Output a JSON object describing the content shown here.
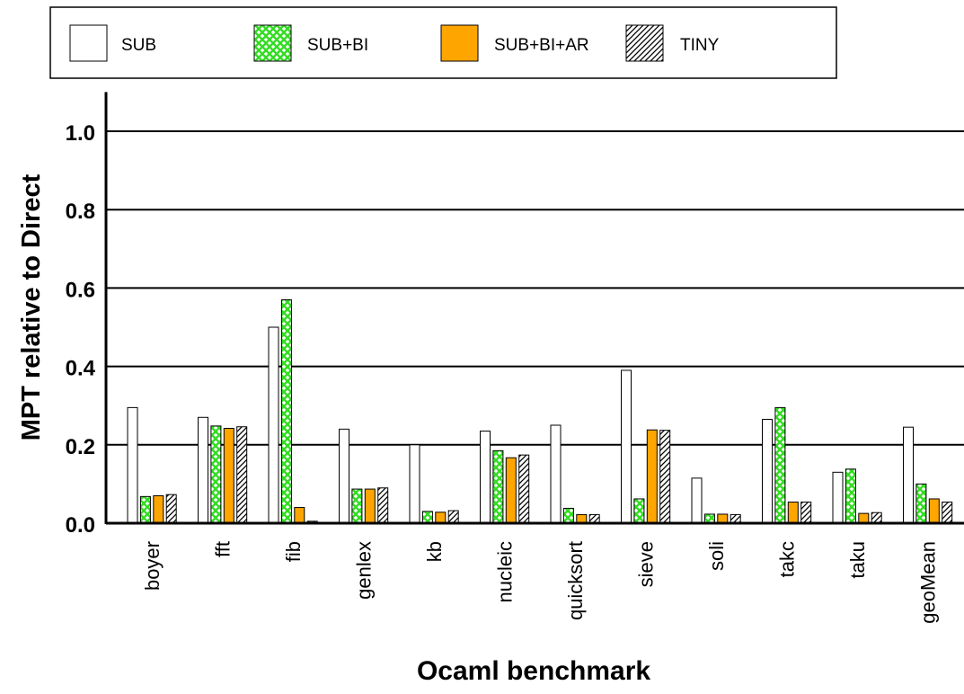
{
  "chart_data": {
    "type": "bar",
    "xlabel": "Ocaml benchmark",
    "ylabel": "MPT relative to Direct",
    "ylim": [
      0,
      1.1
    ],
    "yticks": [
      "0.0",
      "0.2",
      "0.4",
      "0.6",
      "0.8",
      "1.0"
    ],
    "grid": true,
    "legend_position": "top",
    "categories": [
      "boyer",
      "fft",
      "fib",
      "genlex",
      "kb",
      "nucleic",
      "quicksort",
      "sieve",
      "soli",
      "takc",
      "taku",
      "geoMean"
    ],
    "series": [
      {
        "name": "SUB",
        "pattern": "plain",
        "color": "#ffffff",
        "values": [
          0.295,
          0.27,
          0.5,
          0.24,
          0.2,
          0.235,
          0.25,
          0.39,
          0.115,
          0.265,
          0.13,
          0.245
        ]
      },
      {
        "name": "SUB+BI",
        "pattern": "crosshatch",
        "color": "#33dd22",
        "values": [
          0.068,
          0.248,
          0.57,
          0.087,
          0.03,
          0.185,
          0.038,
          0.062,
          0.023,
          0.295,
          0.138,
          0.1
        ]
      },
      {
        "name": "SUB+BI+AR",
        "pattern": "solid",
        "color": "#ffa500",
        "values": [
          0.07,
          0.242,
          0.04,
          0.087,
          0.028,
          0.167,
          0.022,
          0.238,
          0.023,
          0.054,
          0.025,
          0.062
        ]
      },
      {
        "name": "TINY",
        "pattern": "diagonal",
        "color": "#000000",
        "values": [
          0.073,
          0.246,
          0.005,
          0.09,
          0.032,
          0.174,
          0.022,
          0.237,
          0.022,
          0.054,
          0.027,
          0.054
        ]
      }
    ]
  }
}
